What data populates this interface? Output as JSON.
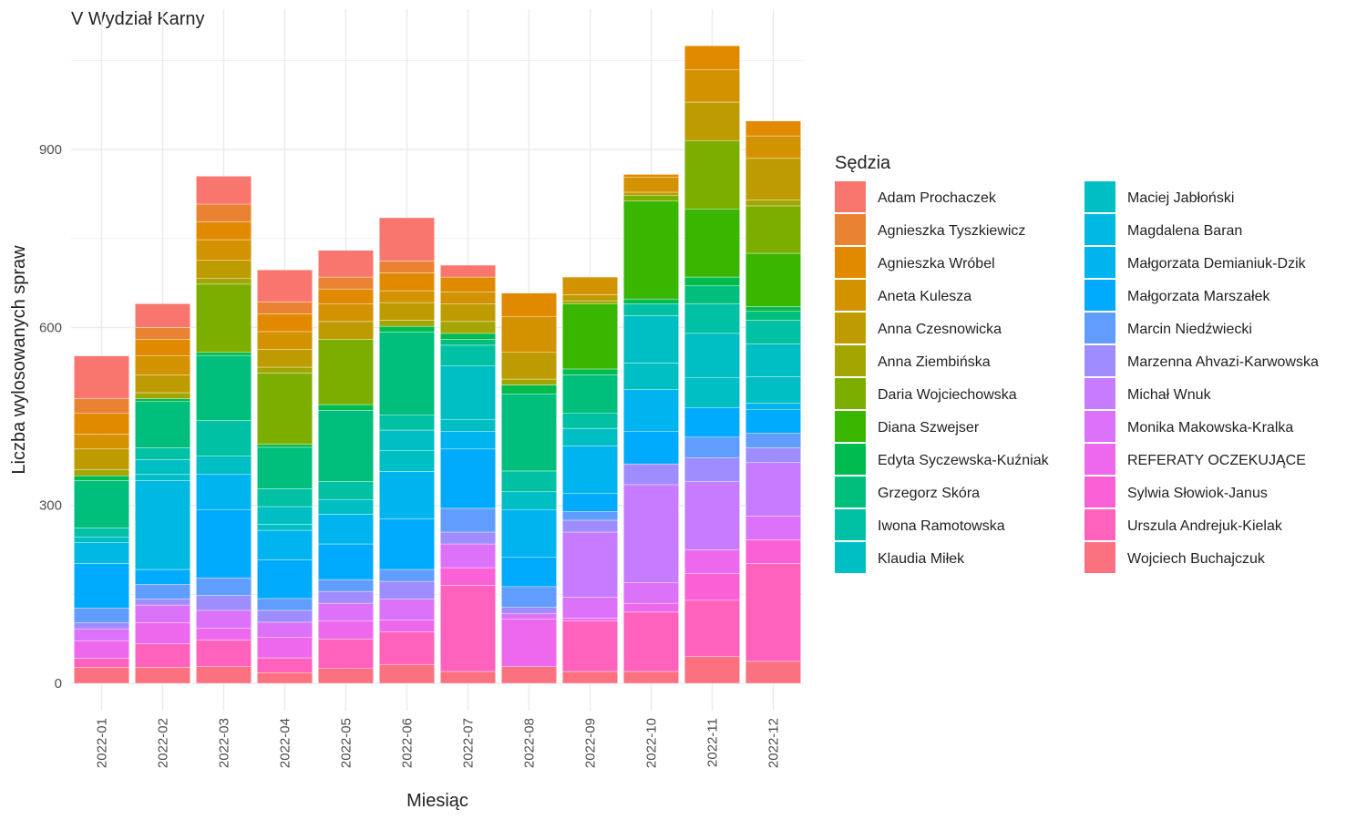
{
  "chart_data": {
    "type": "bar",
    "stacked": true,
    "title": "V Wydział Karny",
    "xlabel": "Miesiąc",
    "ylabel": "Liczba wylosowanych spraw",
    "ylim": [
      0,
      1100
    ],
    "yticks": [
      0,
      300,
      600,
      900
    ],
    "grid": true,
    "legend_title": "Sędzia",
    "legend_position": "right",
    "categories": [
      "2022-01",
      "2022-02",
      "2022-03",
      "2022-04",
      "2022-05",
      "2022-06",
      "2022-07",
      "2022-08",
      "2022-09",
      "2022-10",
      "2022-11",
      "2022-12"
    ],
    "series": [
      {
        "name": "Adam Prochaczek",
        "color": "#F8766D",
        "values": [
          72,
          40,
          47,
          54,
          45,
          73,
          20,
          0,
          0,
          0,
          0,
          0
        ]
      },
      {
        "name": "Agnieszka Tyszkiewicz",
        "color": "#EA8331",
        "values": [
          25,
          20,
          30,
          20,
          20,
          20,
          0,
          0,
          0,
          0,
          0,
          0
        ]
      },
      {
        "name": "Agnieszka Wróbel",
        "color": "#E18A00",
        "values": [
          35,
          28,
          30,
          30,
          25,
          30,
          25,
          40,
          0,
          5,
          40,
          25
        ]
      },
      {
        "name": "Aneta Kulesza",
        "color": "#D39200",
        "values": [
          25,
          32,
          35,
          30,
          30,
          20,
          20,
          60,
          30,
          25,
          55,
          38
        ]
      },
      {
        "name": "Anna Czesnowicka",
        "color": "#BE9C00",
        "values": [
          35,
          30,
          30,
          30,
          30,
          30,
          30,
          45,
          10,
          5,
          65,
          70
        ]
      },
      {
        "name": "Anna Ziembińska",
        "color": "#A3A500",
        "values": [
          10,
          10,
          10,
          10,
          0,
          10,
          20,
          10,
          5,
          0,
          0,
          10
        ]
      },
      {
        "name": "Daria Wojciechowska",
        "color": "#7CAE00",
        "values": [
          0,
          0,
          115,
          120,
          110,
          0,
          0,
          0,
          0,
          10,
          115,
          80
        ]
      },
      {
        "name": "Diana Szwejser",
        "color": "#39B600",
        "values": [
          0,
          0,
          0,
          0,
          0,
          0,
          0,
          0,
          110,
          165,
          115,
          90
        ]
      },
      {
        "name": "Edyta Syczewska-Kuźniak",
        "color": "#00BB4E",
        "values": [
          8,
          5,
          5,
          5,
          10,
          10,
          10,
          15,
          10,
          8,
          15,
          8
        ]
      },
      {
        "name": "Grzegorz Skóra",
        "color": "#00BF7D",
        "values": [
          80,
          78,
          110,
          70,
          120,
          140,
          10,
          130,
          65,
          0,
          30,
          15
        ]
      },
      {
        "name": "Iwona Ramotowska",
        "color": "#00C1A3",
        "values": [
          15,
          20,
          60,
          30,
          30,
          25,
          35,
          35,
          25,
          20,
          50,
          40
        ]
      },
      {
        "name": "Klaudia Miłek",
        "color": "#00BFC4",
        "values": [
          10,
          25,
          30,
          30,
          25,
          35,
          90,
          30,
          30,
          80,
          75,
          55
        ]
      },
      {
        "name": "Maciej Jabłoński",
        "color": "#00BFC4",
        "values": [
          0,
          10,
          0,
          10,
          0,
          35,
          20,
          0,
          0,
          45,
          50,
          45
        ]
      },
      {
        "name": "Magdalena Baran",
        "color": "#00B9E3",
        "values": [
          35,
          150,
          0,
          0,
          0,
          0,
          0,
          0,
          0,
          0,
          0,
          0
        ]
      },
      {
        "name": "Małgorzata Demianiuk-Dzik",
        "color": "#00B4EF",
        "values": [
          0,
          0,
          60,
          50,
          50,
          80,
          30,
          80,
          80,
          70,
          0,
          10
        ]
      },
      {
        "name": "Małgorzata Marszałek",
        "color": "#00ABFD",
        "values": [
          75,
          25,
          115,
          65,
          60,
          85,
          100,
          50,
          30,
          55,
          50,
          40
        ]
      },
      {
        "name": "Marcin Niedźwiecki",
        "color": "#619CFF",
        "values": [
          25,
          25,
          30,
          20,
          20,
          20,
          40,
          35,
          15,
          0,
          35,
          25
        ]
      },
      {
        "name": "Marzenna Ahvazi-Karwowska",
        "color": "#9F8CFF",
        "values": [
          10,
          10,
          25,
          20,
          20,
          30,
          20,
          10,
          20,
          35,
          40,
          25
        ]
      },
      {
        "name": "Michał Wnuk",
        "color": "#C77CFF",
        "values": [
          0,
          0,
          0,
          0,
          0,
          0,
          0,
          0,
          110,
          165,
          115,
          90
        ]
      },
      {
        "name": "Monika Makowska-Kralka",
        "color": "#DC71FA",
        "values": [
          20,
          30,
          30,
          25,
          30,
          35,
          40,
          10,
          35,
          35,
          0,
          40
        ]
      },
      {
        "name": "REFERATY OCZEKUJĄCE",
        "color": "#ED68ED",
        "values": [
          30,
          35,
          20,
          35,
          30,
          20,
          0,
          80,
          5,
          15,
          40,
          0
        ]
      },
      {
        "name": "Sylwia Słowiok-Janus",
        "color": "#FB61D7",
        "values": [
          0,
          0,
          0,
          0,
          0,
          0,
          30,
          0,
          0,
          0,
          45,
          40
        ]
      },
      {
        "name": "Urszula Andrejuk-Kielak",
        "color": "#FF62BC",
        "values": [
          15,
          40,
          45,
          25,
          50,
          55,
          145,
          0,
          85,
          100,
          95,
          165
        ]
      },
      {
        "name": "Wojciech Buchajczuk",
        "color": "#FC717F",
        "values": [
          27,
          27,
          28,
          18,
          25,
          32,
          20,
          28,
          20,
          20,
          45,
          37
        ]
      }
    ]
  }
}
